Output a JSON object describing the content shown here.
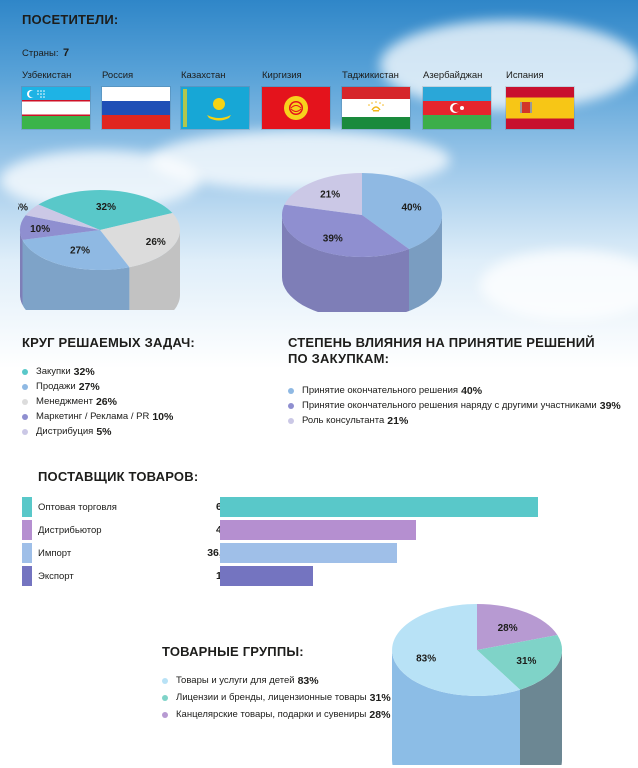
{
  "visitors": {
    "title": "ПОСЕТИТЕЛИ:",
    "countries_label": "Страны:",
    "countries_count": "7",
    "flags": [
      {
        "name": "Узбекистан",
        "icon": "uzbekistan-flag-icon"
      },
      {
        "name": "Россия",
        "icon": "russia-flag-icon"
      },
      {
        "name": "Казахстан",
        "icon": "kazakhstan-flag-icon"
      },
      {
        "name": "Киргизия",
        "icon": "kyrgyzstan-flag-icon"
      },
      {
        "name": "Таджикистан",
        "icon": "tajikistan-flag-icon"
      },
      {
        "name": "Азербайджан",
        "icon": "azerbaijan-flag-icon"
      },
      {
        "name": "Испания",
        "icon": "spain-flag-icon"
      }
    ]
  },
  "tasks": {
    "title": "КРУГ РЕШАЕМЫХ ЗАДАЧ:",
    "items": [
      {
        "label": "Закупки",
        "value": "32%"
      },
      {
        "label": "Продажи",
        "value": "27%"
      },
      {
        "label": "Менеджмент",
        "value": "26%"
      },
      {
        "label": "Маркетинг / Реклама / PR",
        "value": "10%"
      },
      {
        "label": "Дистрибуция",
        "value": "5%"
      }
    ]
  },
  "influence": {
    "title_line1": "СТЕПЕНЬ ВЛИЯНИЯ НА ПРИНЯТИЕ РЕШЕНИЙ",
    "title_line2": "ПО ЗАКУПКАМ:",
    "items": [
      {
        "label": "Принятие окончательного решения",
        "value": "40%"
      },
      {
        "label": "Принятие окончательного решения наряду с другими участниками",
        "value": "39%"
      },
      {
        "label": "Роль консультанта",
        "value": "21%"
      }
    ]
  },
  "suppliers": {
    "title": "ПОСТАВЩИК ТОВАРОВ:",
    "items": [
      {
        "label": "Оптовая торговля",
        "value": "65%"
      },
      {
        "label": "Дистрибьютор",
        "value": "40%"
      },
      {
        "label": "Импорт",
        "value": "36,2%"
      },
      {
        "label": "Экспорт",
        "value": "19%"
      }
    ]
  },
  "groups": {
    "title": "ТОВАРНЫЕ ГРУППЫ:",
    "items": [
      {
        "label": "Товары и услуги для детей",
        "value": "83%"
      },
      {
        "label": "Лицензии и бренды, лицензионные товары",
        "value": "31%"
      },
      {
        "label": "Канцелярские товары, подарки и сувениры",
        "value": "28%"
      }
    ]
  },
  "colors": {
    "teal": "#59c8c9",
    "light_blue": "#8fb9e3",
    "light_gray": "#dcdcdc",
    "purple": "#8f8fd0",
    "lavender": "#cbc8e6",
    "bar_teal": "#59c8c9",
    "bar_violet": "#b58fd0",
    "bar_blue": "#9fbfe8",
    "bar_indigo": "#7474c0",
    "group_sky": "#b8e2f6",
    "group_teal": "#7fd3c8",
    "group_violet": "#b79ad2"
  },
  "chart_data": [
    {
      "type": "pie",
      "categories": [
        "Закупки",
        "Продажи",
        "Менеджмент",
        "Маркетинг / Реклама / PR",
        "Дистрибуция"
      ],
      "values": [
        32,
        27,
        26,
        10,
        5
      ],
      "labels": [
        "32%",
        "27%",
        "26%",
        "10%",
        "5%"
      ],
      "title": "КРУГ РЕШАЕМЫХ ЗАДАЧ:"
    },
    {
      "type": "pie",
      "categories": [
        "Принятие окончательного решения",
        "Принятие окончательного решения наряду с другими участниками",
        "Роль консультанта"
      ],
      "values": [
        40,
        39,
        21
      ],
      "labels": [
        "40%",
        "39%",
        "21%"
      ],
      "title": "СТЕПЕНЬ ВЛИЯНИЯ НА ПРИНЯТИЕ РЕШЕНИЙ ПО ЗАКУПКАМ:"
    },
    {
      "type": "bar",
      "categories": [
        "Оптовая торговля",
        "Дистрибьютор",
        "Импорт",
        "Экспорт"
      ],
      "values": [
        65,
        40,
        36.2,
        19
      ],
      "title": "ПОСТАВЩИК ТОВАРОВ:"
    },
    {
      "type": "pie",
      "categories": [
        "Товары и услуги для детей",
        "Лицензии и бренды, лицензионные товары",
        "Канцелярские товары, подарки и сувениры"
      ],
      "values": [
        83,
        31,
        28
      ],
      "labels": [
        "83%",
        "31%",
        "28%"
      ],
      "title": "ТОВАРНЫЕ ГРУППЫ:"
    }
  ]
}
